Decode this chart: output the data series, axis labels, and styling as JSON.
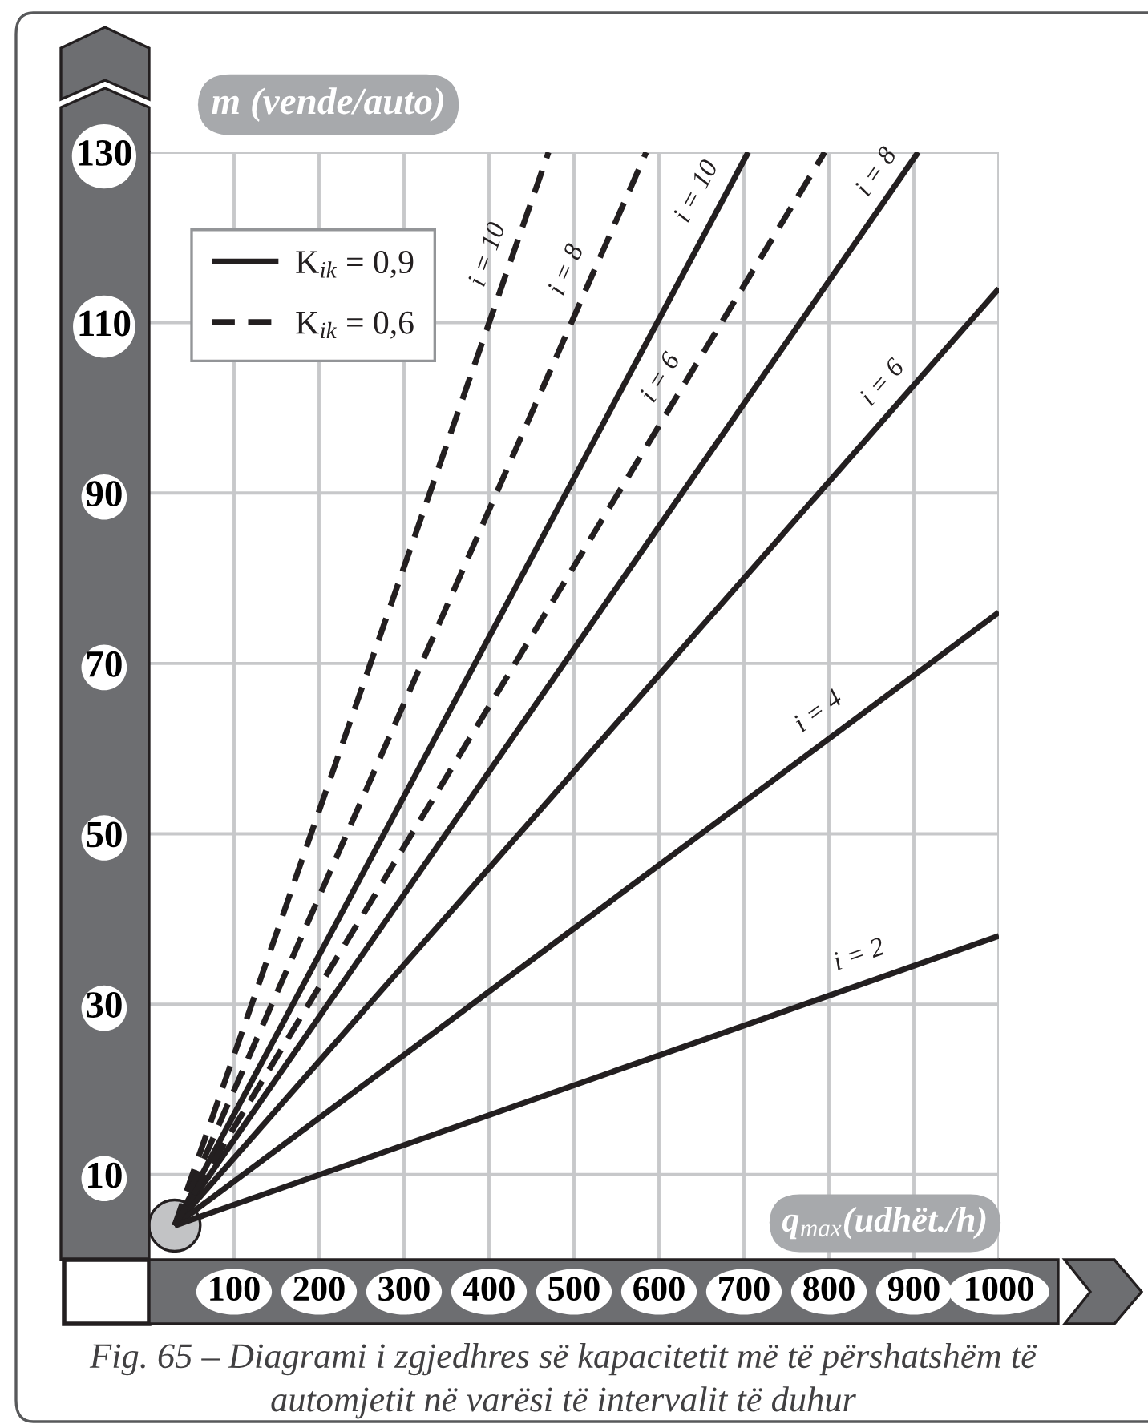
{
  "chart_data": {
    "type": "line",
    "xlabel": "q$_{max}$(udhët./h)",
    "ylabel": "m (vende/auto)",
    "xlim": [
      0,
      1000
    ],
    "ylim": [
      0,
      130
    ],
    "xticks": [
      100,
      200,
      300,
      400,
      500,
      600,
      700,
      800,
      900,
      1000
    ],
    "yticks": [
      10,
      30,
      50,
      70,
      90,
      110,
      130
    ],
    "grid": true,
    "legend": "top left",
    "series": [
      {
        "name": "K$_{ik}$ = 0,9",
        "color": "#231f20",
        "line_style": "solid",
        "x": [
          30,
          705
        ],
        "values": [
          4,
          130
        ]
      },
      {
        "color": "#231f20",
        "line_style": "solid",
        "x": [
          30,
          905
        ],
        "values": [
          4,
          130
        ]
      },
      {
        "color": "#231f20",
        "line_style": "solid",
        "x": [
          30,
          1000
        ],
        "values": [
          4,
          114
        ]
      },
      {
        "color": "#231f20",
        "line_style": "solid",
        "x": [
          30,
          1000
        ],
        "values": [
          4,
          76
        ]
      },
      {
        "color": "#231f20",
        "line_style": "solid",
        "x": [
          30,
          1000
        ],
        "values": [
          4,
          38
        ]
      },
      {
        "name": "K$_{ik}$ = 0,6",
        "color": "#231f20",
        "line_style": "dashed",
        "x": [
          30,
          470
        ],
        "values": [
          4,
          130
        ]
      },
      {
        "color": "#231f20",
        "line_style": "dashed",
        "x": [
          30,
          585
        ],
        "values": [
          4,
          130
        ]
      },
      {
        "color": "#231f20",
        "line_style": "dashed",
        "x": [
          30,
          795
        ],
        "values": [
          4,
          130
        ]
      }
    ],
    "annotations": [
      {
        "text": "i = 10",
        "x": 426,
        "y": 117
      },
      {
        "text": "i = 8",
        "x": 518,
        "y": 115
      },
      {
        "text": "i = 10",
        "x": 670,
        "y": 124
      },
      {
        "text": "i = 6",
        "x": 627,
        "y": 102
      },
      {
        "text": "i = 8",
        "x": 880,
        "y": 126
      },
      {
        "text": "i = 6",
        "x": 885,
        "y": 101
      },
      {
        "text": "i = 4",
        "x": 805,
        "y": 62
      },
      {
        "text": "i = 2",
        "x": 845,
        "y": 33
      },
      "Fig. 65 – Diagrami i zgjedhres së kapacitetit më të përshatshëm të automjetit në varësi të intervalit të duhur"
    ]
  }
}
